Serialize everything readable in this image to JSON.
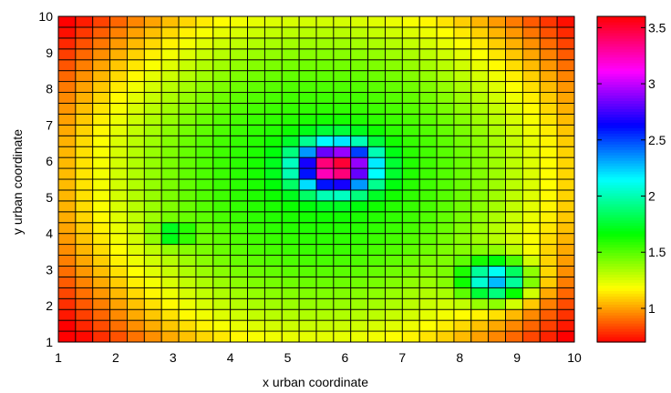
{
  "chart_data": {
    "type": "heatmap",
    "title": "",
    "xlabel": "x urban coordinate",
    "ylabel": "y urban coordinate",
    "xlim": [
      1,
      10
    ],
    "ylim": [
      1,
      10
    ],
    "grid_cols": 30,
    "grid_rows": 30,
    "x_ticks": [
      "1",
      "2",
      "3",
      "4",
      "5",
      "6",
      "7",
      "8",
      "9",
      "10"
    ],
    "y_ticks": [
      "1",
      "2",
      "3",
      "4",
      "5",
      "6",
      "7",
      "8",
      "9",
      "10"
    ],
    "colorbar": {
      "range": [
        0.7,
        3.6
      ],
      "ticks": [
        "1",
        "1.5",
        "2",
        "2.5",
        "3",
        "3.5"
      ],
      "tick_values": [
        1,
        1.5,
        2,
        2.5,
        3,
        3.5
      ],
      "colormap": "hsv"
    },
    "field": {
      "baseline": 1.65,
      "bowl_a": 0.03,
      "bowl_b": 0.021,
      "center": [
        5.6,
        5.6
      ],
      "bumps": [
        {
          "x": 5.85,
          "y": 5.85,
          "peak": 1.95,
          "sigma": 0.45
        },
        {
          "x": 8.65,
          "y": 2.7,
          "peak": 1.1,
          "sigma": 0.4
        },
        {
          "x": 3.0,
          "y": 4.0,
          "peak": 0.45,
          "sigma": 0.2
        }
      ]
    }
  }
}
